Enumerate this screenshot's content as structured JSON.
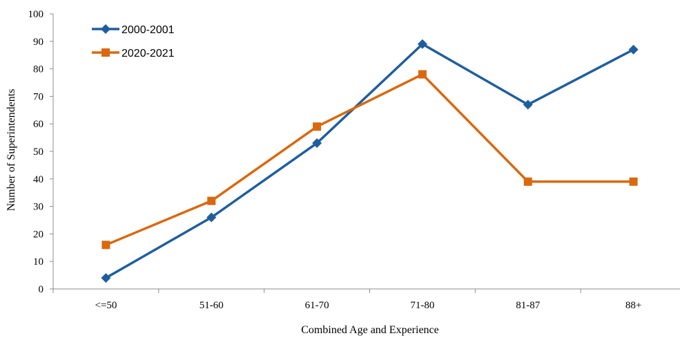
{
  "chart_data": {
    "type": "line",
    "title": "",
    "xlabel": "Combined Age and Experience",
    "ylabel": "Number of Superintendents",
    "categories": [
      "<=50",
      "51-60",
      "61-70",
      "71-80",
      "81-87",
      "88+"
    ],
    "ylim": [
      0,
      100
    ],
    "yticks": [
      "0",
      "10",
      "20",
      "30",
      "40",
      "50",
      "60",
      "70",
      "80",
      "90",
      "100"
    ],
    "grid": false,
    "legend_position": "top-left",
    "series": [
      {
        "name": "2000-2001",
        "color": "#1F5E9E",
        "marker": "diamond",
        "values": [
          4,
          26,
          53,
          89,
          67,
          87
        ]
      },
      {
        "name": "2020-2021",
        "color": "#D9680F",
        "marker": "square",
        "values": [
          16,
          32,
          59,
          78,
          39,
          39
        ]
      }
    ]
  }
}
